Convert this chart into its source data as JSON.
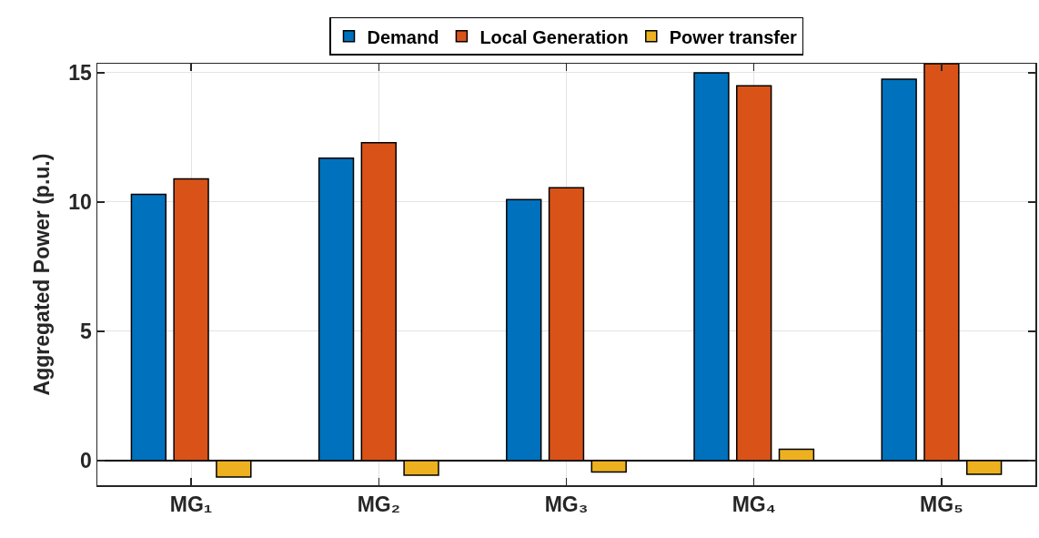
{
  "chart_data": {
    "type": "bar",
    "ylabel": "Aggregated Power (p.u.)",
    "categories": [
      "MG₁",
      "MG₂",
      "MG₃",
      "MG₄",
      "MG₅"
    ],
    "series": [
      {
        "name": "Demand",
        "color": "#0072bd",
        "values": [
          10.3,
          11.7,
          10.1,
          15.0,
          14.75
        ]
      },
      {
        "name": "Local Generation",
        "color": "#d95319",
        "values": [
          10.9,
          12.3,
          10.55,
          14.5,
          15.35
        ]
      },
      {
        "name": "Power transfer",
        "color": "#edb120",
        "values": [
          -0.63,
          -0.56,
          -0.44,
          0.44,
          -0.53
        ]
      }
    ],
    "ylim": [
      -0.95,
      15.35
    ],
    "yticks": [
      0,
      5,
      10,
      15
    ],
    "grid": true,
    "legend": "top"
  }
}
